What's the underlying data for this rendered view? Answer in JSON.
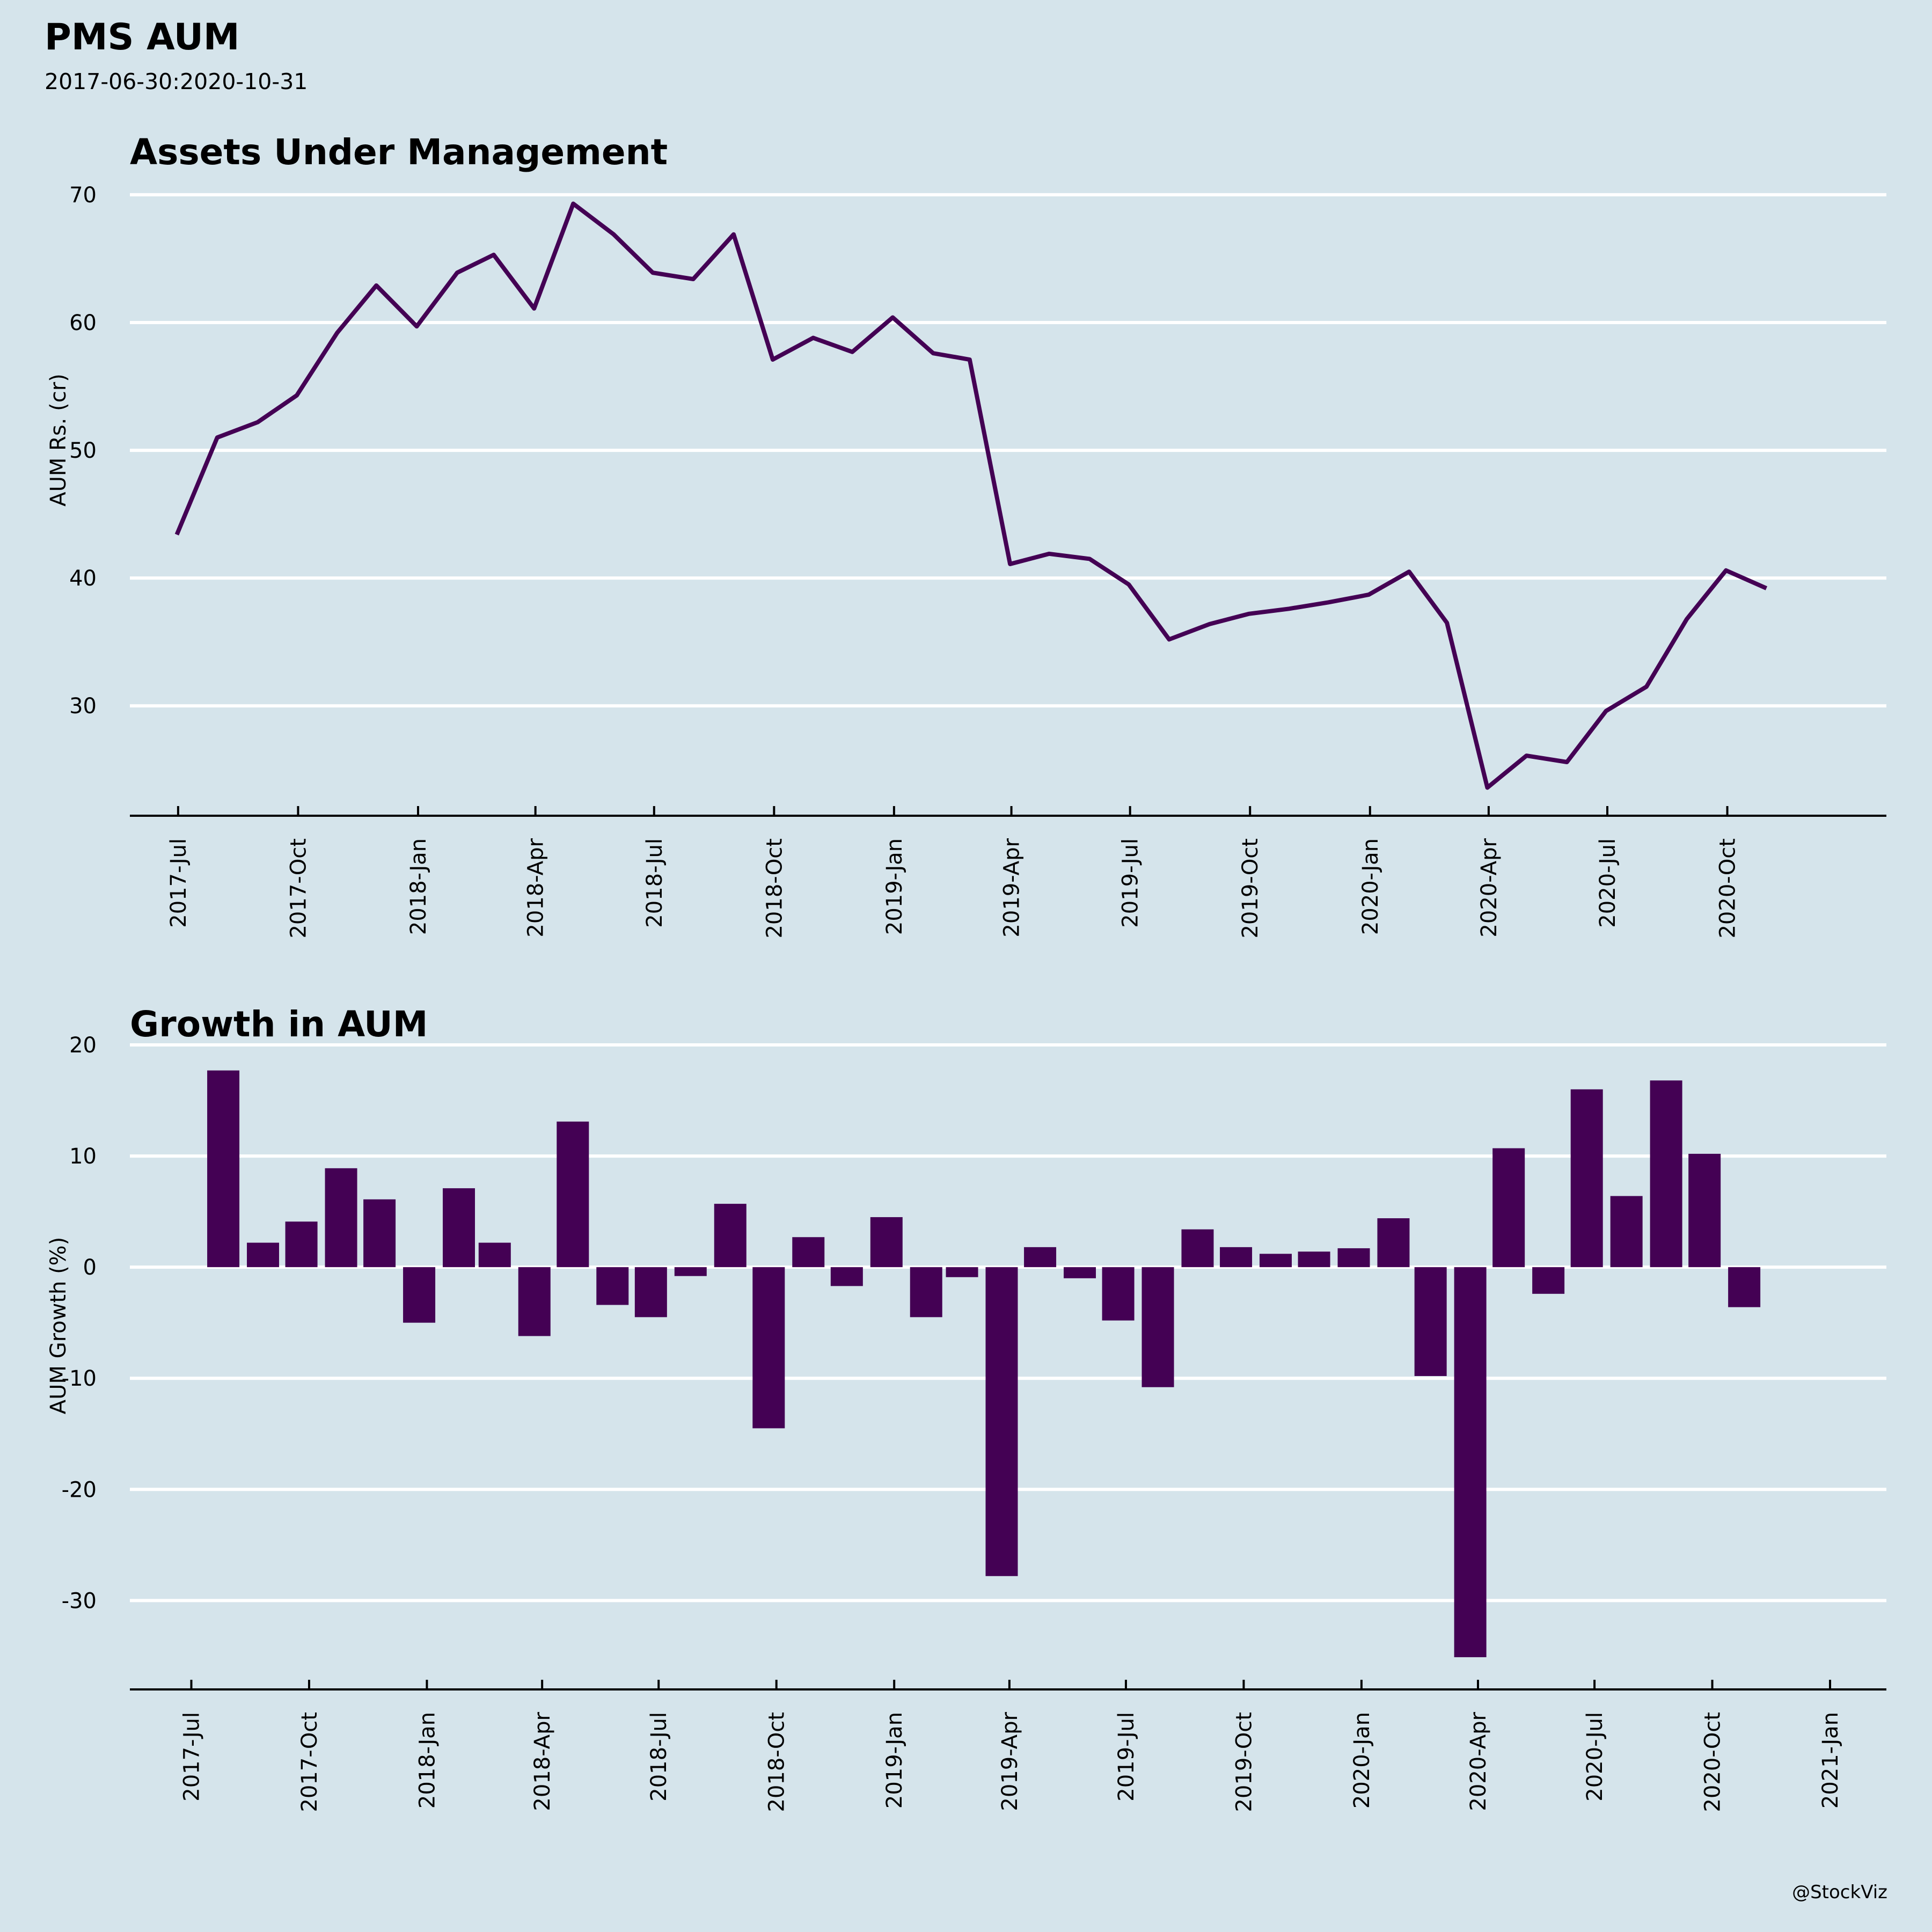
{
  "header": {
    "title": "PMS AUM",
    "subtitle": "2017-06-30:2020-10-31"
  },
  "footer": {
    "credit": "@StockViz"
  },
  "colors": {
    "background": "#d5e4eb",
    "series": "#440154",
    "grid": "#ffffff",
    "axis": "#000000"
  },
  "chart_data": [
    {
      "type": "line",
      "title": "Assets Under Management",
      "xlabel": "",
      "ylabel": "AUM Rs. (cr)",
      "ylim": [
        21.4,
        70.5
      ],
      "yticks": [
        30,
        40,
        50,
        60,
        70
      ],
      "grid": true,
      "xlim": [
        "2017-05-25",
        "2021-01-31"
      ],
      "xticks": [
        {
          "date": "2017-07-01",
          "label": "2017-Jul"
        },
        {
          "date": "2017-10-01",
          "label": "2017-Oct"
        },
        {
          "date": "2018-01-01",
          "label": "2018-Jan"
        },
        {
          "date": "2018-04-01",
          "label": "2018-Apr"
        },
        {
          "date": "2018-07-01",
          "label": "2018-Jul"
        },
        {
          "date": "2018-10-01",
          "label": "2018-Oct"
        },
        {
          "date": "2019-01-01",
          "label": "2019-Jan"
        },
        {
          "date": "2019-04-01",
          "label": "2019-Apr"
        },
        {
          "date": "2019-07-01",
          "label": "2019-Jul"
        },
        {
          "date": "2019-10-01",
          "label": "2019-Oct"
        },
        {
          "date": "2020-01-01",
          "label": "2020-Jan"
        },
        {
          "date": "2020-04-01",
          "label": "2020-Apr"
        },
        {
          "date": "2020-07-01",
          "label": "2020-Jul"
        },
        {
          "date": "2020-10-01",
          "label": "2020-Oct"
        }
      ],
      "x": [
        "2017-06-30",
        "2017-07-31",
        "2017-08-31",
        "2017-09-30",
        "2017-10-31",
        "2017-11-30",
        "2017-12-31",
        "2018-01-31",
        "2018-02-28",
        "2018-03-31",
        "2018-04-30",
        "2018-05-31",
        "2018-06-30",
        "2018-07-31",
        "2018-08-31",
        "2018-09-30",
        "2018-10-31",
        "2018-11-30",
        "2018-12-31",
        "2019-01-31",
        "2019-02-28",
        "2019-03-31",
        "2019-04-30",
        "2019-05-31",
        "2019-06-30",
        "2019-07-31",
        "2019-08-31",
        "2019-09-30",
        "2019-10-31",
        "2019-11-30",
        "2019-12-31",
        "2020-01-31",
        "2020-02-29",
        "2020-03-31",
        "2020-04-30",
        "2020-05-31",
        "2020-06-30",
        "2020-07-31",
        "2020-08-31",
        "2020-09-30",
        "2020-10-31"
      ],
      "series": [
        {
          "name": "AUM",
          "values": [
            43.4,
            51.0,
            52.2,
            54.3,
            59.2,
            62.9,
            59.7,
            63.9,
            65.3,
            61.1,
            69.3,
            66.9,
            63.9,
            63.4,
            66.9,
            57.1,
            58.8,
            57.7,
            60.4,
            57.6,
            57.1,
            41.1,
            41.9,
            41.5,
            39.5,
            35.2,
            36.4,
            37.2,
            37.6,
            38.1,
            38.7,
            40.5,
            36.5,
            23.6,
            26.1,
            25.6,
            29.6,
            31.5,
            36.8,
            40.6,
            39.2
          ]
        }
      ]
    },
    {
      "type": "bar",
      "title": "Growth in AUM",
      "xlabel": "",
      "ylabel": "AUM Growth (%)",
      "ylim": [
        -38,
        20
      ],
      "yticks": [
        -30,
        -20,
        -10,
        0,
        10,
        20
      ],
      "grid": true,
      "xlim": [
        "2017-05-14",
        "2021-02-14"
      ],
      "xticks": [
        {
          "date": "2017-07-01",
          "label": "2017-Jul"
        },
        {
          "date": "2017-10-01",
          "label": "2017-Oct"
        },
        {
          "date": "2018-01-01",
          "label": "2018-Jan"
        },
        {
          "date": "2018-04-01",
          "label": "2018-Apr"
        },
        {
          "date": "2018-07-01",
          "label": "2018-Jul"
        },
        {
          "date": "2018-10-01",
          "label": "2018-Oct"
        },
        {
          "date": "2019-01-01",
          "label": "2019-Jan"
        },
        {
          "date": "2019-04-01",
          "label": "2019-Apr"
        },
        {
          "date": "2019-07-01",
          "label": "2019-Jul"
        },
        {
          "date": "2019-10-01",
          "label": "2019-Oct"
        },
        {
          "date": "2020-01-01",
          "label": "2020-Jan"
        },
        {
          "date": "2020-04-01",
          "label": "2020-Apr"
        },
        {
          "date": "2020-07-01",
          "label": "2020-Jul"
        },
        {
          "date": "2020-10-01",
          "label": "2020-Oct"
        },
        {
          "date": "2021-01-01",
          "label": "2021-Jan"
        }
      ],
      "x": [
        "2017-07-31",
        "2017-08-31",
        "2017-09-30",
        "2017-10-31",
        "2017-11-30",
        "2017-12-31",
        "2018-01-31",
        "2018-02-28",
        "2018-03-31",
        "2018-04-30",
        "2018-05-31",
        "2018-06-30",
        "2018-07-31",
        "2018-08-31",
        "2018-09-30",
        "2018-10-31",
        "2018-11-30",
        "2018-12-31",
        "2019-01-31",
        "2019-02-28",
        "2019-03-31",
        "2019-04-30",
        "2019-05-31",
        "2019-06-30",
        "2019-07-31",
        "2019-08-31",
        "2019-09-30",
        "2019-10-31",
        "2019-11-30",
        "2019-12-31",
        "2020-01-31",
        "2020-02-29",
        "2020-03-31",
        "2020-04-30",
        "2020-05-31",
        "2020-06-30",
        "2020-07-31",
        "2020-08-31",
        "2020-09-30",
        "2020-10-31"
      ],
      "series": [
        {
          "name": "Growth",
          "values": [
            17.7,
            2.2,
            4.1,
            8.9,
            6.1,
            -5.0,
            7.1,
            2.2,
            -6.2,
            13.1,
            -3.4,
            -4.5,
            -0.8,
            5.7,
            -14.5,
            2.7,
            -1.7,
            4.5,
            -4.5,
            -0.9,
            -27.8,
            1.8,
            -1.0,
            -4.8,
            -10.8,
            3.4,
            1.8,
            1.2,
            1.4,
            1.7,
            4.4,
            -9.8,
            -35.1,
            10.7,
            -2.4,
            16.0,
            6.4,
            16.8,
            10.2,
            -3.6
          ]
        }
      ]
    }
  ]
}
